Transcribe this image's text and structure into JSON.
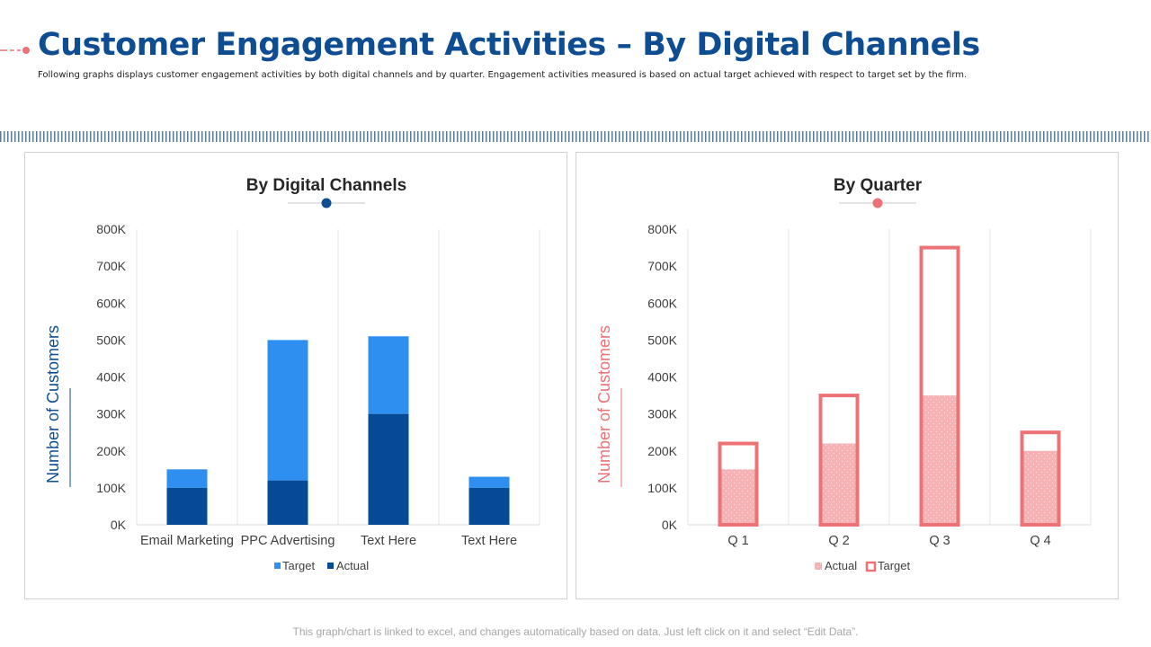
{
  "header": {
    "title": "Customer Engagement Activities – By Digital Channels",
    "subtitle": "Following graphs displays customer engagement  activities by both digital channels and by quarter. Engagement  activities measured is based on actual target achieved with respect to target set by the firm."
  },
  "footer": {
    "note": "This graph/chart is linked to excel, and changes automatically based on data. Just left click on it and select “Edit Data”."
  },
  "colors": {
    "title": "#0e4d92",
    "target_blue": "#2e8ff0",
    "actual_blue": "#044a94",
    "target_pink": "#ec7275",
    "actual_pink": "#f5b1b3"
  },
  "chart_data": [
    {
      "type": "bar",
      "stacked": true,
      "title": "By Digital Channels",
      "ylabel": "Number of Customers",
      "xlabel": "",
      "ylim": [
        0,
        800000
      ],
      "yticks": [
        "0K",
        "100K",
        "200K",
        "300K",
        "400K",
        "500K",
        "600K",
        "700K",
        "800K"
      ],
      "categories": [
        "Email Marketing",
        "PPC Advertising",
        "Text Here",
        "Text Here"
      ],
      "series": [
        {
          "name": "Target",
          "values": [
            150000,
            500000,
            510000,
            130000
          ]
        },
        {
          "name": "Actual",
          "values": [
            100000,
            120000,
            300000,
            100000
          ]
        }
      ],
      "legend": [
        "Target",
        "Actual"
      ],
      "legend_position": "bottom"
    },
    {
      "type": "bar",
      "stacked": false,
      "overlapping": true,
      "title": "By Quarter",
      "ylabel": "Number of Customers",
      "xlabel": "",
      "ylim": [
        0,
        800000
      ],
      "yticks": [
        "0K",
        "100K",
        "200K",
        "300K",
        "400K",
        "500K",
        "600K",
        "700K",
        "800K"
      ],
      "categories": [
        "Q 1",
        "Q 2",
        "Q 3",
        "Q 4"
      ],
      "series": [
        {
          "name": "Actual",
          "values": [
            150000,
            220000,
            350000,
            200000
          ]
        },
        {
          "name": "Target",
          "values": [
            220000,
            350000,
            750000,
            250000
          ]
        }
      ],
      "legend": [
        "Actual",
        "Target"
      ],
      "legend_position": "bottom"
    }
  ]
}
